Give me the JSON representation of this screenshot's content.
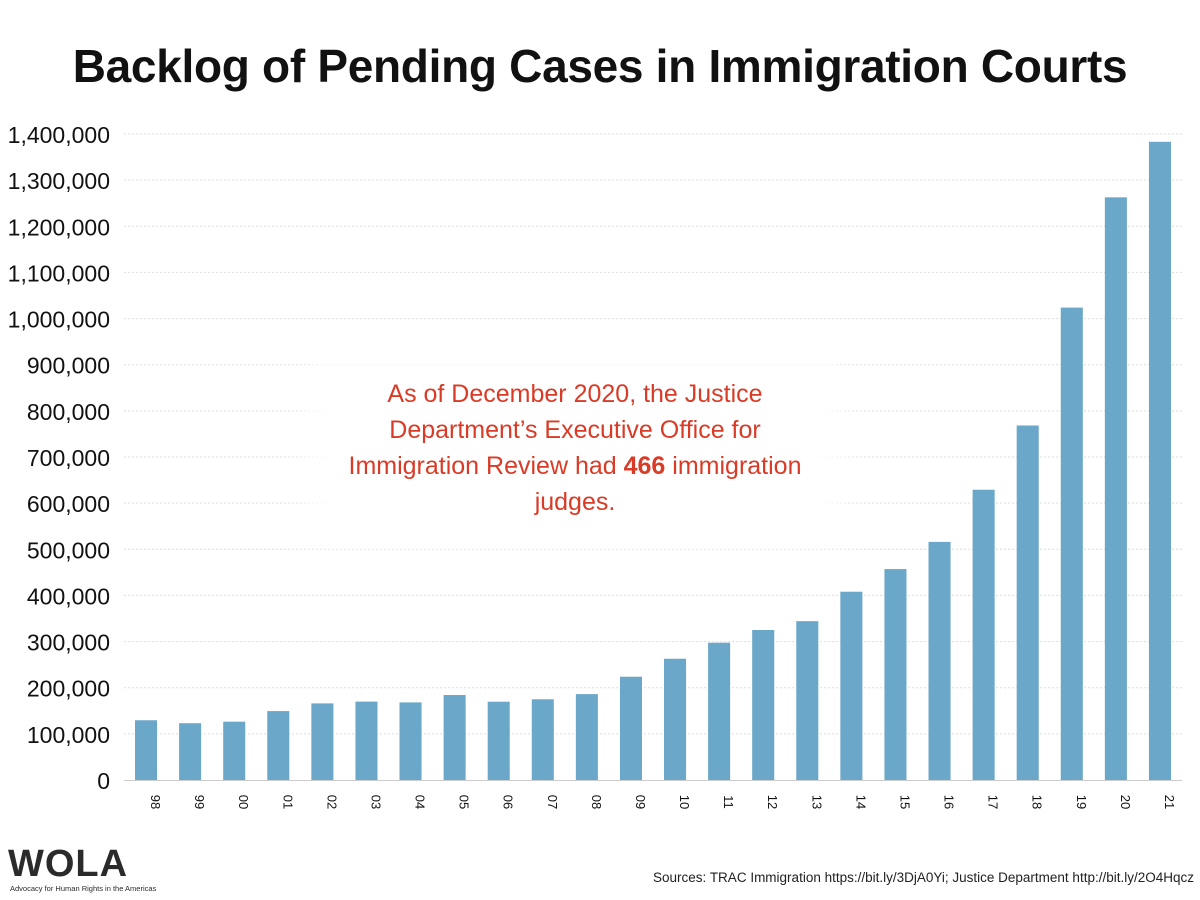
{
  "logo": {
    "name": "WOLA",
    "tagline": "Advocacy for Human Rights in the Americas"
  },
  "annotation": {
    "before": "As of December 2020, the Justice Department’s Executive Office for Immigration Review had ",
    "bold": "466",
    "after": " immigration judges."
  },
  "source": "Sources: TRAC Immigration https://bit.ly/3DjA0Yi; Justice Department http://bit.ly/2O4Hqcz",
  "colors": {
    "bar": "#6aa7c9",
    "annotation": "#d93b26",
    "grid": "#dddddd"
  },
  "chart_data": {
    "type": "bar",
    "title": "Backlog of Pending Cases in Immigration Courts",
    "xlabel": "",
    "ylabel": "",
    "categories": [
      "98",
      "99",
      "00",
      "01",
      "02",
      "03",
      "04",
      "05",
      "06",
      "07",
      "08",
      "09",
      "10",
      "11",
      "12",
      "13",
      "14",
      "15",
      "16",
      "17",
      "18",
      "19",
      "20",
      "21"
    ],
    "values": [
      129505,
      123061,
      126383,
      149338,
      166061,
      169910,
      168176,
      184181,
      169638,
      174935,
      186108,
      223809,
      262799,
      297551,
      325044,
      344230,
      408037,
      457106,
      516031,
      629051,
      768257,
      1023767,
      1262765,
      1383102
    ],
    "ylim": [
      0,
      1400000
    ],
    "yticks": [
      0,
      100000,
      200000,
      300000,
      400000,
      500000,
      600000,
      700000,
      800000,
      900000,
      1000000,
      1100000,
      1200000,
      1300000,
      1400000
    ],
    "ytick_labels": [
      "0",
      "100,000",
      "200,000",
      "300,000",
      "400,000",
      "500,000",
      "600,000",
      "700,000",
      "800,000",
      "900,000",
      "1,000,000",
      "1,100,000",
      "1,200,000",
      "1,300,000",
      "1,400,000"
    ],
    "grid": true,
    "legend": "none"
  }
}
